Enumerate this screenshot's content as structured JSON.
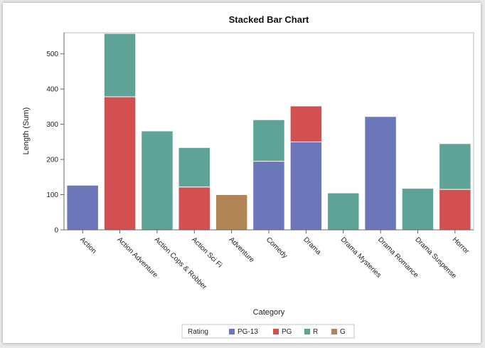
{
  "chart_data": {
    "type": "bar",
    "stacked": true,
    "title": "Stacked Bar Chart",
    "xlabel": "Category",
    "ylabel": "Length (Sum)",
    "ylim": [
      0,
      560
    ],
    "yticks": [
      "0",
      "100",
      "200",
      "300",
      "400",
      "500"
    ],
    "categories": [
      "Action",
      "Action Adventure",
      "Action Cops & Robber",
      "Action Sci Fi",
      "Adventure",
      "Comedy",
      "Drama",
      "Drama Mysteries",
      "Drama Romance",
      "Drama Suspense",
      "Horror"
    ],
    "legend_title": "Rating",
    "legend_position": "bottom",
    "series": [
      {
        "name": "PG-13",
        "color": "#6b77b8",
        "values": [
          127,
          0,
          0,
          0,
          0,
          195,
          250,
          0,
          322,
          0,
          0
        ]
      },
      {
        "name": "PG",
        "color": "#d2504f",
        "values": [
          0,
          378,
          0,
          122,
          0,
          0,
          102,
          0,
          0,
          0,
          115
        ]
      },
      {
        "name": "R",
        "color": "#5fa396",
        "values": [
          0,
          180,
          281,
          112,
          0,
          118,
          0,
          105,
          0,
          118,
          130
        ]
      },
      {
        "name": "G",
        "color": "#b08455",
        "values": [
          0,
          0,
          0,
          0,
          100,
          0,
          0,
          0,
          0,
          0,
          0
        ]
      }
    ]
  }
}
